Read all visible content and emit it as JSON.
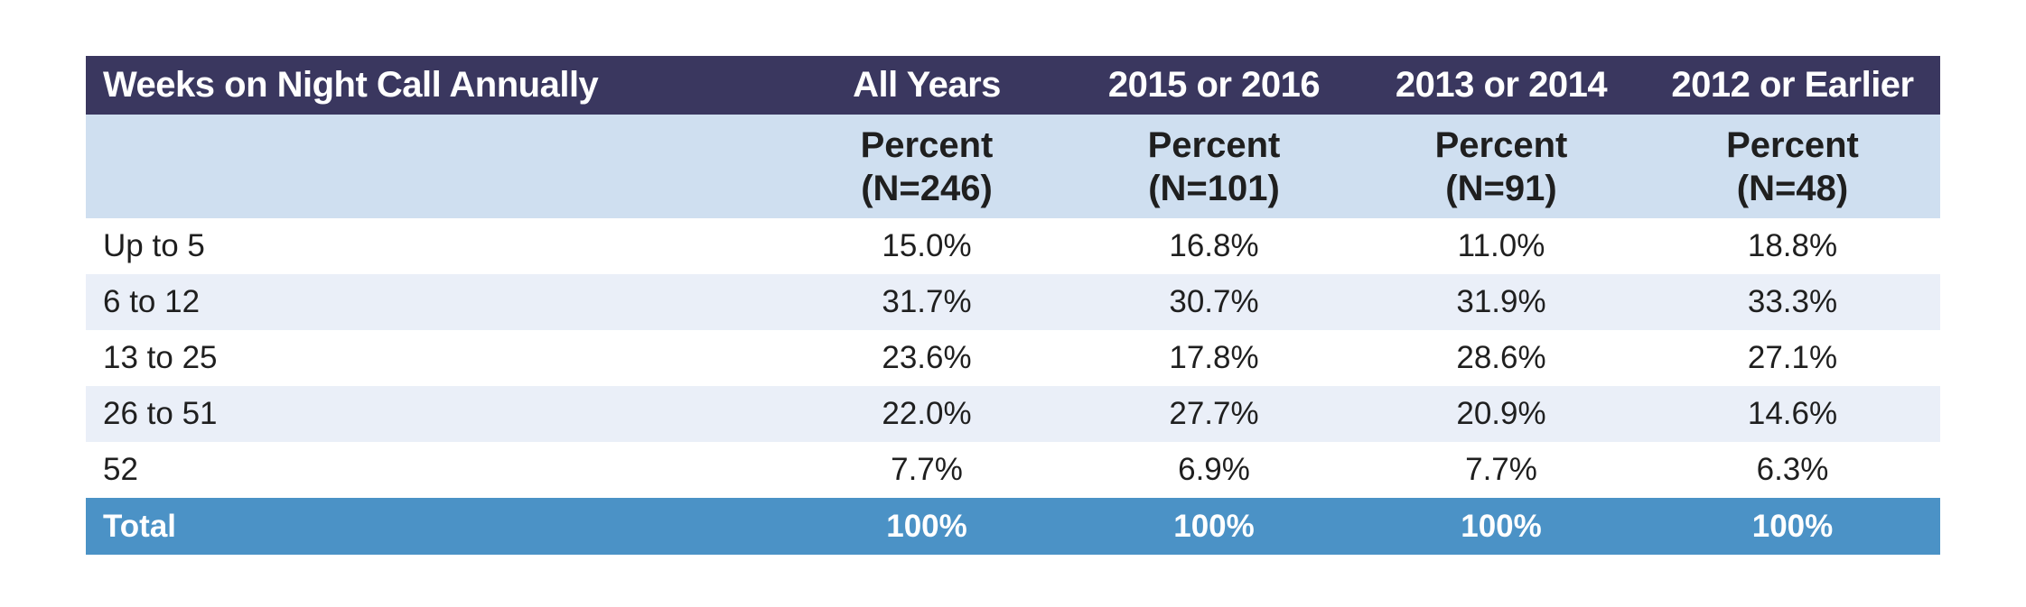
{
  "table": {
    "header": {
      "row_label": "Weeks on Night Call Annually",
      "columns": [
        "All Years",
        "2015 or 2016",
        "2013 or 2014",
        "2012 or Earlier"
      ]
    },
    "subheader": [
      {
        "line1": "Percent",
        "line2": "(N=246)"
      },
      {
        "line1": "Percent",
        "line2": "(N=101)"
      },
      {
        "line1": "Percent",
        "line2": "(N=91)"
      },
      {
        "line1": "Percent",
        "line2": "(N=48)"
      }
    ],
    "rows": [
      {
        "label": "Up to 5",
        "values": [
          "15.0%",
          "16.8%",
          "11.0%",
          "18.8%"
        ]
      },
      {
        "label": "6 to 12",
        "values": [
          "31.7%",
          "30.7%",
          "31.9%",
          "33.3%"
        ]
      },
      {
        "label": "13 to 25",
        "values": [
          "23.6%",
          "17.8%",
          "28.6%",
          "27.1%"
        ]
      },
      {
        "label": "26 to 51",
        "values": [
          "22.0%",
          "27.7%",
          "20.9%",
          "14.6%"
        ]
      },
      {
        "label": "52",
        "values": [
          "7.7%",
          "6.9%",
          "7.7%",
          "6.3%"
        ]
      }
    ],
    "total": {
      "label": "Total",
      "values": [
        "100%",
        "100%",
        "100%",
        "100%"
      ]
    }
  },
  "colors": {
    "header_bg": "#3a375f",
    "subheader_bg": "#cfdff0",
    "row_tint_bg": "#eaeff8",
    "total_bg": "#4b92c6"
  }
}
